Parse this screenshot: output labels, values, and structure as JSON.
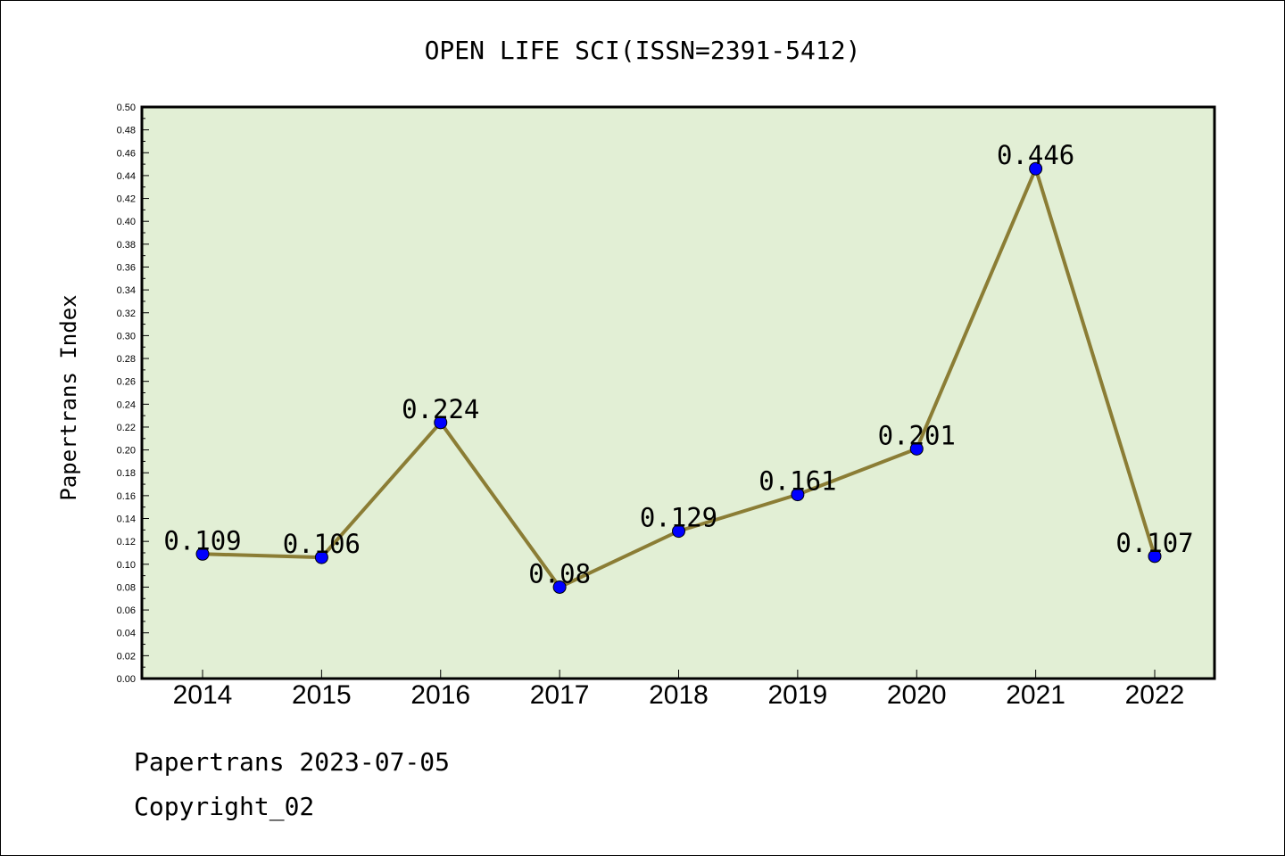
{
  "chart_data": {
    "type": "line",
    "title": "OPEN LIFE SCI(ISSN=2391-5412)",
    "xlabel": "",
    "ylabel": "Papertrans Index",
    "categories": [
      "2014",
      "2015",
      "2016",
      "2017",
      "2018",
      "2019",
      "2020",
      "2021",
      "2022"
    ],
    "values": [
      0.109,
      0.106,
      0.224,
      0.08,
      0.129,
      0.161,
      0.201,
      0.446,
      0.107
    ],
    "value_labels": [
      "0.109",
      "0.106",
      "0.224",
      "0.08",
      "0.129",
      "0.161",
      "0.201",
      "0.446",
      "0.107"
    ],
    "ylim": [
      0,
      0.5
    ],
    "ytick_step": 0.02,
    "ytick_labels": [
      "0.00",
      "0.02",
      "0.04",
      "0.06",
      "0.08",
      "0.10",
      "0.12",
      "0.14",
      "0.16",
      "0.18",
      "0.20",
      "0.22",
      "0.24",
      "0.26",
      "0.28",
      "0.30",
      "0.32",
      "0.34",
      "0.36",
      "0.38",
      "0.40",
      "0.42",
      "0.44",
      "0.46",
      "0.48",
      "0.50"
    ],
    "grid": false,
    "legend": "none",
    "colors": {
      "plot_background": "#e2efd5",
      "line": "#8b7d35",
      "marker": "#0000ff",
      "axes": "#000000"
    }
  },
  "footer": {
    "line1": "Papertrans 2023-07-05",
    "line2": "Copyright_02"
  }
}
